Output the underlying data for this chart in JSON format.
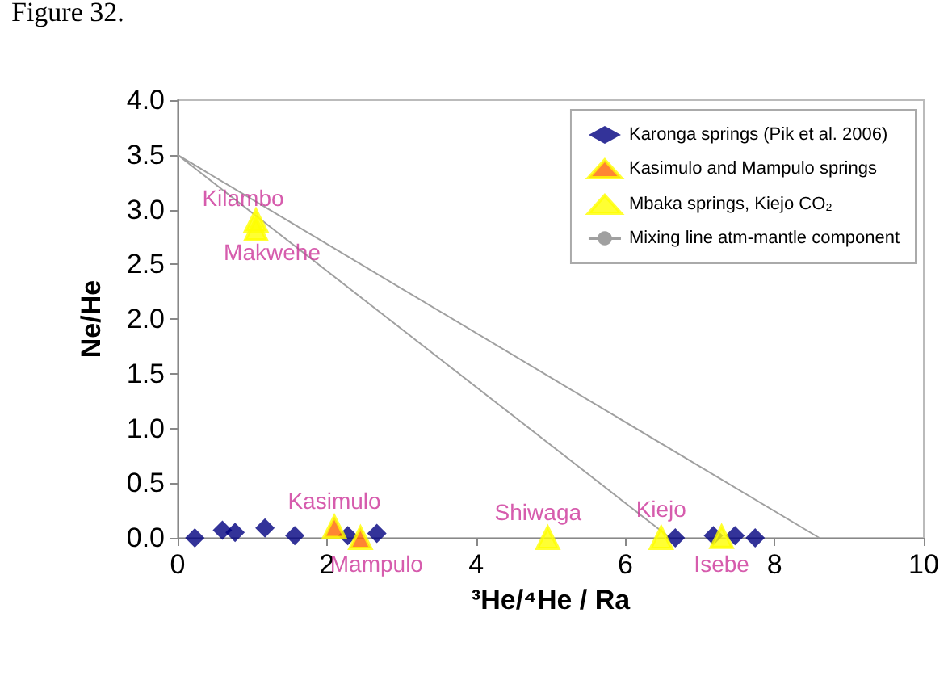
{
  "chart_data": {
    "type": "scatter",
    "title": "Figure 32.",
    "xlabel": "³He/⁴He / Ra",
    "ylabel": "Ne/He",
    "xlim": [
      0,
      10
    ],
    "xticks": [
      0,
      2,
      4,
      6,
      8,
      10
    ],
    "ylim": [
      0,
      4
    ],
    "yticks": [
      {
        "value": 0,
        "label": "0.0"
      },
      {
        "value": 0.5,
        "label": "0.5"
      },
      {
        "value": 1,
        "label": "1.0"
      },
      {
        "value": 1.5,
        "label": "1.5"
      },
      {
        "value": 2,
        "label": "2.0"
      },
      {
        "value": 2.5,
        "label": "2.5"
      },
      {
        "value": 3,
        "label": "3.0"
      },
      {
        "value": 3.5,
        "label": "3.5"
      },
      {
        "value": 4,
        "label": "4.0"
      }
    ],
    "grid": false,
    "legend": "top right",
    "series": [
      {
        "name": "Karonga springs (Pik et al. 2006)",
        "color": "#000080",
        "marker": "diamond",
        "x": [
          0.23,
          0.6,
          0.77,
          1.17,
          1.57,
          2.28,
          2.67,
          6.67,
          7.18,
          7.47,
          7.74
        ],
        "values": [
          0,
          0.07,
          0.05,
          0.09,
          0.02,
          0.02,
          0.04,
          0,
          0.02,
          0.02,
          0
        ]
      },
      {
        "name": "Kasimulo and Mampulo springs",
        "color": "#ff6600",
        "marker": "triangle",
        "x": [
          2.1,
          2.45
        ],
        "values": [
          0.1,
          0
        ]
      },
      {
        "name": "Mbaka springs, Kiejo CO₂",
        "color": "#ffff00",
        "marker": "triangle",
        "x": [
          1.05,
          1.05,
          4.96,
          6.48,
          7.29
        ],
        "values": [
          2.9,
          2.82,
          0,
          0,
          0.01
        ]
      },
      {
        "name": "Mixing line atm-mantle component",
        "type": "line",
        "color": "#a0a0a0",
        "marker": "none",
        "x": [
          0,
          8.6
        ],
        "values": [
          3.5,
          0
        ]
      },
      {
        "type": "line",
        "color": "#a0a0a0",
        "marker": "none",
        "x": [
          0,
          6.6
        ],
        "values": [
          3.5,
          0
        ]
      }
    ],
    "annotations": [
      {
        "text": "Kilambo",
        "x": 1.05,
        "y": 2.9
      },
      {
        "text": "Makwehe",
        "x": 1.05,
        "y": 2.82
      },
      {
        "text": "Kasimulo",
        "x": 2.1,
        "y": 0.1
      },
      {
        "text": "Mampulo",
        "x": 2.45,
        "y": 0
      },
      {
        "text": "Shiwaga",
        "x": 4.96,
        "y": 0
      },
      {
        "text": "Kiejo",
        "x": 6.48,
        "y": 0
      },
      {
        "text": "Isebe",
        "x": 7.29,
        "y": 0
      }
    ]
  }
}
